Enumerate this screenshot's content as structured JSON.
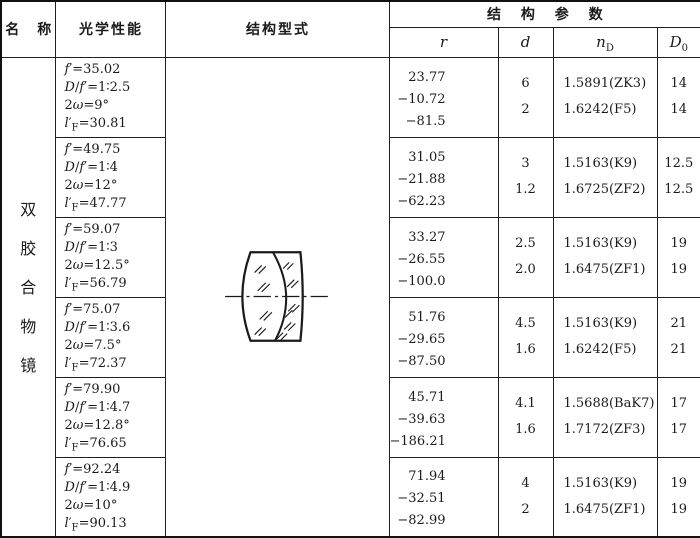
{
  "table": {
    "header": {
      "name": "名　称",
      "optical_performance": "光学性能",
      "structure_type": "结构型式",
      "structure_params": "结 构 参 数",
      "col_r_html": "<i>r</i>",
      "col_d_html": "<i>d</i>",
      "col_nd_html": "<i>n</i><sub>D</sub>",
      "col_d0_html": "<i>D</i><sub>0</sub>"
    },
    "name_column": {
      "text": "双胶合物镜",
      "chars": [
        "双",
        "胶",
        "合",
        "物",
        "镜"
      ]
    },
    "ink_color": "#1b1b1b",
    "rows": [
      {
        "performance": [
          "<i>f</i>′=35.02",
          "<i>D</i>/<i>f</i>′=1∶2.5",
          "2<i>ω</i>=9°",
          "<i>l</i>′<sub>F</sub>=30.81"
        ],
        "r": [
          "23.77",
          "−10.72",
          "−81.5"
        ],
        "d": [
          "6",
          "2"
        ],
        "nd": [
          "1.5891(ZK3)",
          "1.6242(F5)"
        ],
        "d0": [
          "14",
          "14"
        ]
      },
      {
        "performance": [
          "<i>f</i>′=49.75",
          "<i>D</i>/<i>f</i>′=1∶4",
          "2<i>ω</i>=12°",
          "<i>l</i>′<sub>F</sub>=47.77"
        ],
        "r": [
          "31.05",
          "−21.88",
          "−62.23"
        ],
        "d": [
          "3",
          "1.2"
        ],
        "nd": [
          "1.5163(K9)",
          "1.6725(ZF2)"
        ],
        "d0": [
          "12.5",
          "12.5"
        ]
      },
      {
        "performance": [
          "<i>f</i>′=59.07",
          "<i>D</i>/<i>f</i>′=1∶3",
          "2<i>ω</i>=12.5°",
          "<i>l</i>′<sub>F</sub>=56.79"
        ],
        "r": [
          "33.27",
          "−26.55",
          "−100.0"
        ],
        "d": [
          "2.5",
          "2.0"
        ],
        "nd": [
          "1.5163(K9)",
          "1.6475(ZF1)"
        ],
        "d0": [
          "19",
          "19"
        ]
      },
      {
        "performance": [
          "<i>f</i>′=75.07",
          "<i>D</i>/<i>f</i>′=1∶3.6",
          "2<i>ω</i>=7.5°",
          "<i>l</i>′<sub>F</sub>=72.37"
        ],
        "r": [
          "51.76",
          "−29.65",
          "−87.50"
        ],
        "d": [
          "4.5",
          "1.6"
        ],
        "nd": [
          "1.5163(K9)",
          "1.6242(F5)"
        ],
        "d0": [
          "21",
          "21"
        ]
      },
      {
        "performance": [
          "<i>f</i>′=79.90",
          "<i>D</i>/<i>f</i>′=1∶4.7",
          "2<i>ω</i>=12.8°",
          "<i>l</i>′<sub>F</sub>=76.65"
        ],
        "r": [
          "45.71",
          "−39.63",
          "−186.21"
        ],
        "d": [
          "4.1",
          "1.6"
        ],
        "nd": [
          "1.5688(BaK7)",
          "1.7172(ZF3)"
        ],
        "d0": [
          "17",
          "17"
        ]
      },
      {
        "performance": [
          "<i>f</i>′=92.24",
          "<i>D</i>/<i>f</i>′=1∶4.9",
          "2<i>ω</i>=10°",
          "<i>l</i>′<sub>F</sub>=90.13"
        ],
        "r": [
          "71.94",
          "−32.51",
          "−82.99"
        ],
        "d": [
          "4",
          "2"
        ],
        "nd": [
          "1.5163(K9)",
          "1.6475(ZF1)"
        ],
        "d0": [
          "19",
          "19"
        ]
      }
    ]
  }
}
